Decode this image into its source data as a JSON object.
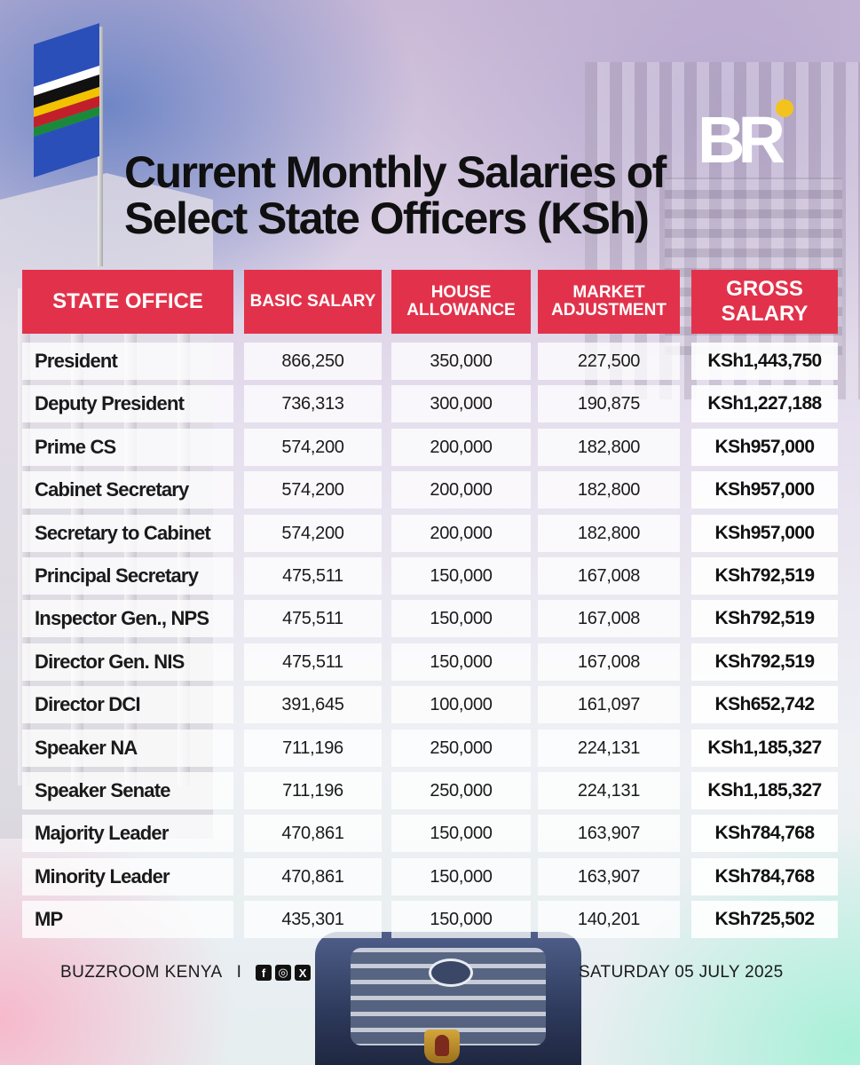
{
  "title": {
    "line1": "Current Monthly Salaries of",
    "line2": "Select State Officers (KSh)"
  },
  "brand": {
    "logo_text": "BR",
    "logo_dot_color": "#f4c21e"
  },
  "table": {
    "headers": {
      "office": "STATE OFFICE",
      "basic": "BASIC SALARY",
      "house": "HOUSE ALLOWANCE",
      "market": "MARKET ADJUSTMENT",
      "gross": "GROSS SALARY"
    },
    "header_color": "#e2324b",
    "rows": [
      {
        "office": "President",
        "basic": "866,250",
        "house": "350,000",
        "market": "227,500",
        "gross": "KSh1,443,750"
      },
      {
        "office": "Deputy President",
        "basic": "736,313",
        "house": "300,000",
        "market": "190,875",
        "gross": "KSh1,227,188"
      },
      {
        "office": "Prime CS",
        "basic": "574,200",
        "house": "200,000",
        "market": "182,800",
        "gross": "KSh957,000"
      },
      {
        "office": "Cabinet Secretary",
        "basic": "574,200",
        "house": "200,000",
        "market": "182,800",
        "gross": "KSh957,000"
      },
      {
        "office": "Secretary to Cabinet",
        "basic": "574,200",
        "house": "200,000",
        "market": "182,800",
        "gross": "KSh957,000"
      },
      {
        "office": "Principal Secretary",
        "basic": "475,511",
        "house": "150,000",
        "market": "167,008",
        "gross": "KSh792,519"
      },
      {
        "office": "Inspector Gen., NPS",
        "basic": "475,511",
        "house": "150,000",
        "market": "167,008",
        "gross": "KSh792,519"
      },
      {
        "office": "Director Gen. NIS",
        "basic": "475,511",
        "house": "150,000",
        "market": "167,008",
        "gross": "KSh792,519"
      },
      {
        "office": "Director DCI",
        "basic": "391,645",
        "house": "100,000",
        "market": "161,097",
        "gross": "KSh652,742"
      },
      {
        "office": "Speaker NA",
        "basic": "711,196",
        "house": "250,000",
        "market": "224,131",
        "gross": "KSh1,185,327"
      },
      {
        "office": "Speaker Senate",
        "basic": "711,196",
        "house": "250,000",
        "market": "224,131",
        "gross": "KSh1,185,327"
      },
      {
        "office": "Majority Leader",
        "basic": "470,861",
        "house": "150,000",
        "market": "163,907",
        "gross": "KSh784,768"
      },
      {
        "office": "Minority Leader",
        "basic": "470,861",
        "house": "150,000",
        "market": "163,907",
        "gross": "KSh784,768"
      },
      {
        "office": "MP",
        "basic": "435,301",
        "house": "150,000",
        "market": "140,201",
        "gross": "KSh725,502"
      }
    ]
  },
  "footer": {
    "source": "BUZZROOM KENYA",
    "separator": "I",
    "social_icons": [
      "facebook-icon",
      "instagram-icon",
      "x-icon"
    ],
    "date": "SATURDAY 05 JULY 2025"
  }
}
